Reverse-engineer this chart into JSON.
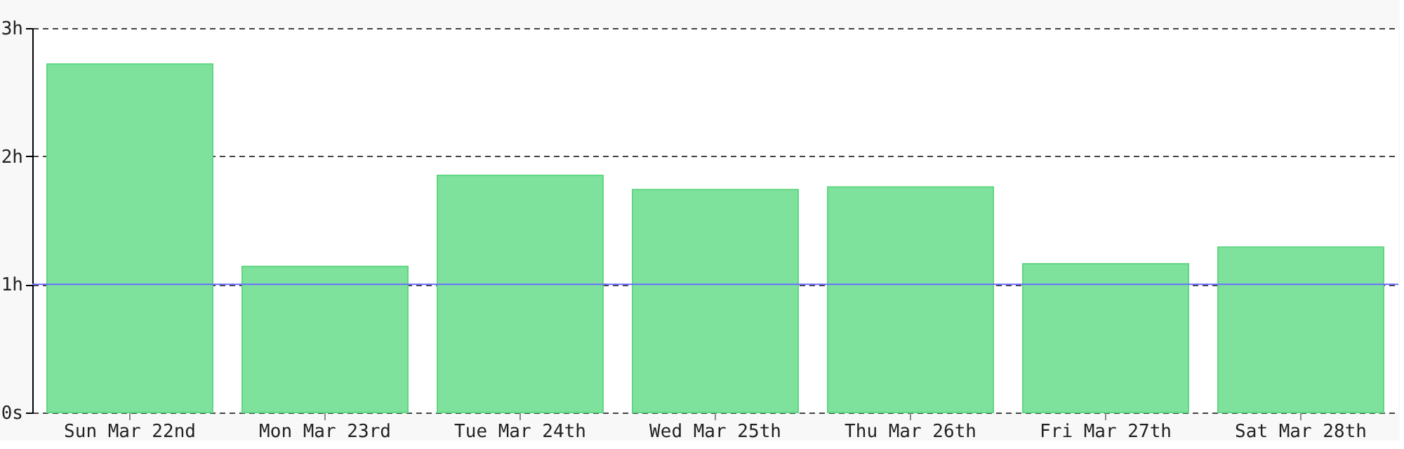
{
  "chart_data": {
    "type": "bar",
    "categories": [
      "Sun Mar 22nd",
      "Mon Mar 23rd",
      "Tue Mar 24th",
      "Wed Mar 25th",
      "Thu Mar 26th",
      "Fri Mar 27th",
      "Sat Mar 28th"
    ],
    "values": [
      2.72,
      1.14,
      1.85,
      1.74,
      1.76,
      1.16,
      1.29
    ],
    "color": "#7ee29d",
    "ylim": [
      0,
      3
    ],
    "yticks": [
      {
        "value": 0,
        "label": "0s"
      },
      {
        "value": 1,
        "label": "1h"
      },
      {
        "value": 2,
        "label": "2h"
      },
      {
        "value": 3,
        "label": "3h"
      }
    ],
    "grid": "y",
    "ref_lines": [
      {
        "axis": "y",
        "value": 1,
        "color": "#6b6bff"
      }
    ]
  }
}
